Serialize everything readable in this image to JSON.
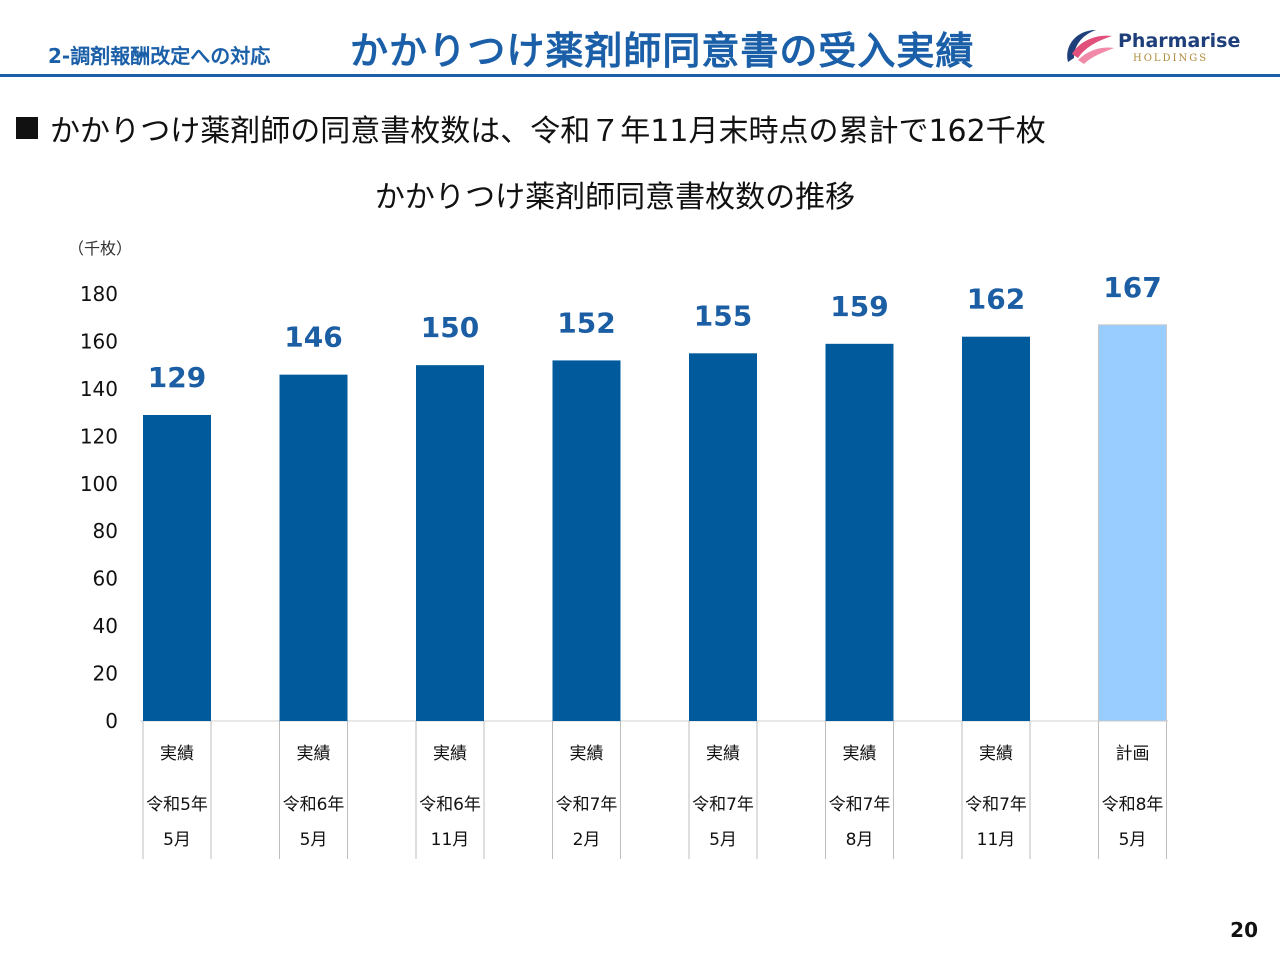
{
  "header": {
    "section_label": "2-調剤報酬改定への対応",
    "title": "かかりつけ薬剤師同意書の受入実績",
    "logo_name": "Pharmarise",
    "logo_sub": "HOLDINGS"
  },
  "bullet": {
    "text": "かかりつけ薬剤師の同意書枚数は、令和７年11月末時点の累計で162千枚"
  },
  "chart_title": "かかりつけ薬剤師同意書枚数の推移",
  "page_number": "20",
  "colors": {
    "accent": "#1a5fa8",
    "actual_bar": "#005a9c",
    "plan_bar": "#99ccff",
    "label": "#1b5ea3"
  },
  "chart_data": {
    "type": "bar",
    "unit_label": "（千枚）",
    "ylim": [
      0,
      180
    ],
    "yticks": [
      "0",
      "20",
      "40",
      "60",
      "80",
      "100",
      "120",
      "140",
      "160",
      "180"
    ],
    "categories": [
      {
        "kind": "実績",
        "year": "令和5年",
        "month": "5月"
      },
      {
        "kind": "実績",
        "year": "令和6年",
        "month": "5月"
      },
      {
        "kind": "実績",
        "year": "令和6年",
        "month": "11月"
      },
      {
        "kind": "実績",
        "year": "令和7年",
        "month": "2月"
      },
      {
        "kind": "実績",
        "year": "令和7年",
        "month": "5月"
      },
      {
        "kind": "実績",
        "year": "令和7年",
        "month": "8月"
      },
      {
        "kind": "実績",
        "year": "令和7年",
        "month": "11月"
      },
      {
        "kind": "計画",
        "year": "令和8年",
        "month": "5月"
      }
    ],
    "values": [
      129,
      146,
      150,
      152,
      155,
      159,
      162,
      167
    ],
    "data_labels": [
      "129",
      "146",
      "150",
      "152",
      "155",
      "159",
      "162",
      "167"
    ],
    "series_type": [
      "actual",
      "actual",
      "actual",
      "actual",
      "actual",
      "actual",
      "actual",
      "plan"
    ]
  }
}
